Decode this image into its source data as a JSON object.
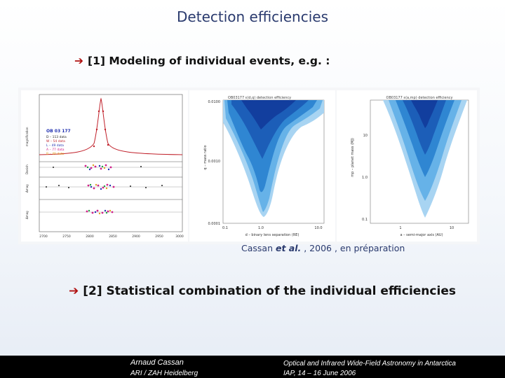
{
  "title": "Detection efficiencies",
  "bullet1": "[1] Modeling of individual events, e.g. :",
  "bullet2": "[2] Statistical combination of the individual efficiencies",
  "caption": {
    "author": "Cassan ",
    "etal": "et al.",
    "rest": " , 2006 , en préparation"
  },
  "figure": {
    "lightcurve": {
      "event": "OB 03 177",
      "legend": [
        "D – 113 data",
        "W – 54 data",
        "L – 49 data",
        "A – 77 data",
        "B – 49 data"
      ],
      "ylabels": [
        "magnification",
        "Danish",
        "Δmag",
        "Δmag"
      ],
      "xticks": [
        "2700",
        "2750",
        "2800",
        "2850",
        "2900",
        "2950",
        "3000"
      ]
    },
    "panel1": {
      "title": "OB03177  ε(d,q) detection efficiency",
      "ylabel": "q – mass ratio",
      "xlabel": "d – binary lens separation (RE)",
      "yticks": [
        "0.0100",
        "0.0010",
        "0.0001"
      ],
      "xticks": [
        "0.1",
        "1.0",
        "10.0"
      ]
    },
    "panel2": {
      "title": "OB03177  ε(a,mp) detection efficiency",
      "ylabel": "mp – planet mass (MJ)",
      "xlabel": "a – semi-major axis (AU)",
      "yticks": [
        "10",
        "1.0",
        "0.1"
      ],
      "xticks": [
        "1",
        "10"
      ]
    }
  },
  "footer": {
    "author": "Arnaud Cassan",
    "affiliation": "ARI / ZAH Heidelberg",
    "conference": "Optical and Infrared Wide-Field Astronomy in Antarctica",
    "venue": "IAP,  14 – 16 June 2006"
  }
}
